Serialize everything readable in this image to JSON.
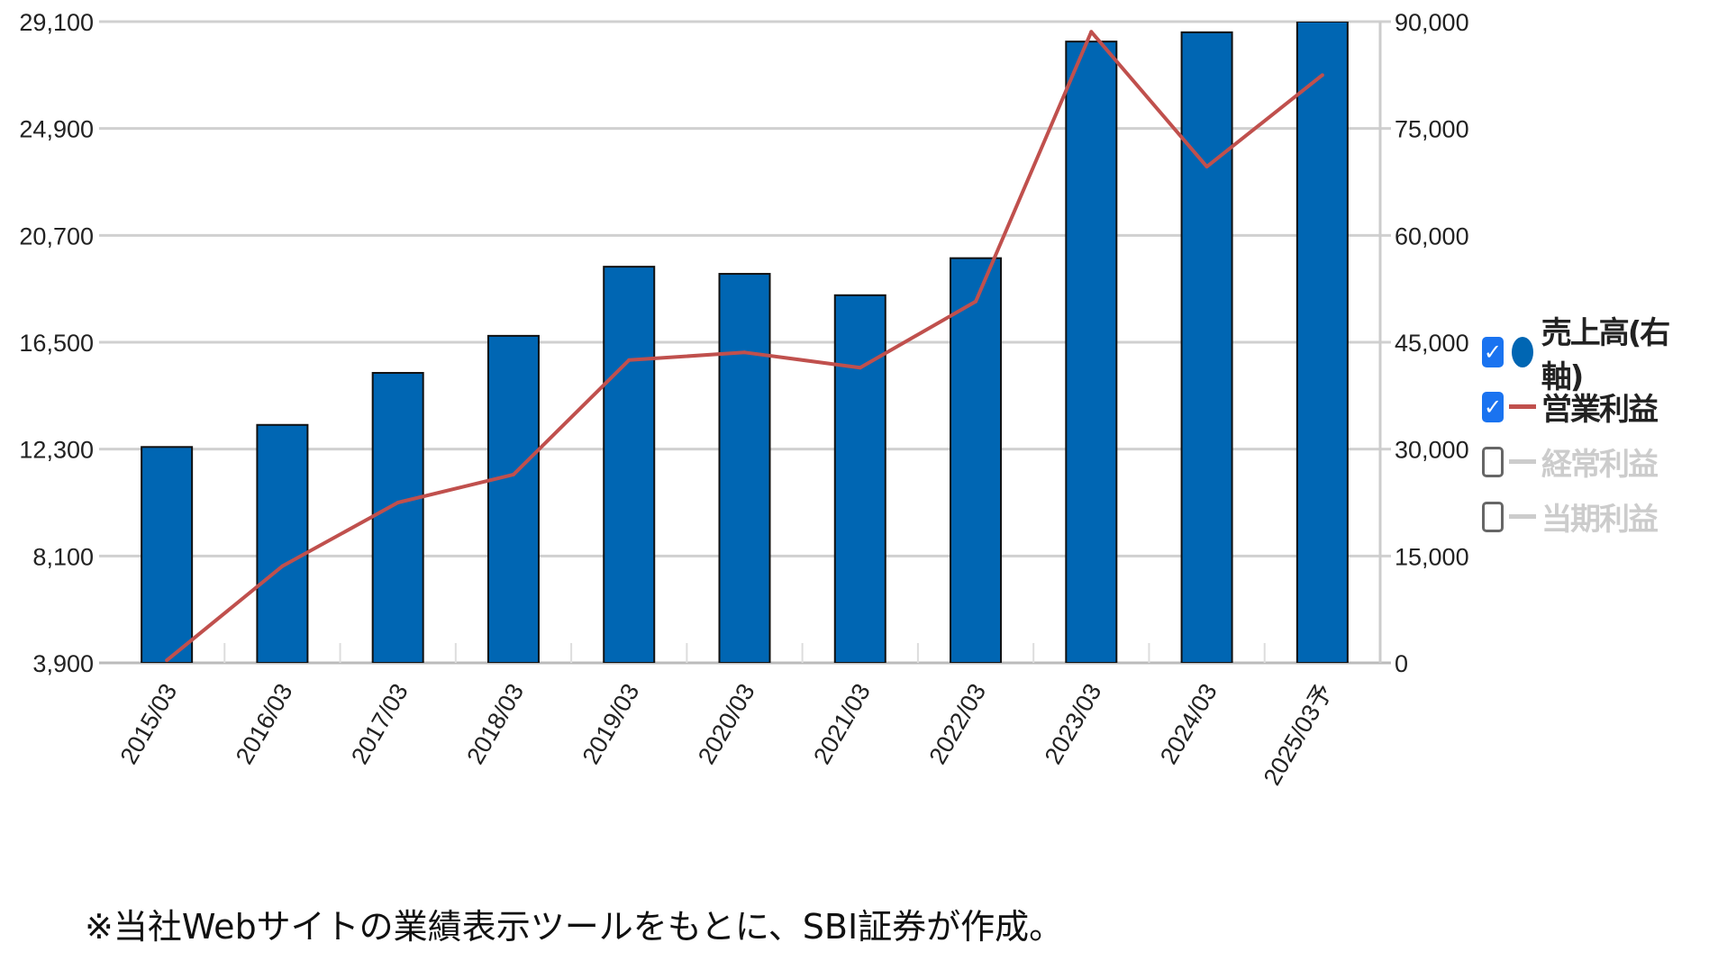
{
  "chart_data": {
    "type": "bar+line",
    "categories": [
      "2015/03",
      "2016/03",
      "2017/03",
      "2018/03",
      "2019/03",
      "2020/03",
      "2021/03",
      "2022/03",
      "2023/03",
      "2024/03",
      "2025/03予"
    ],
    "series": [
      {
        "name": "売上高(右軸)",
        "type": "bar",
        "axis": "right",
        "color": "#0066b3",
        "values": [
          30300,
          33400,
          40700,
          45900,
          55600,
          54600,
          51600,
          56800,
          87200,
          88500,
          90000
        ]
      },
      {
        "name": "営業利益",
        "type": "line",
        "axis": "left",
        "color": "#c0504d",
        "values": [
          4000,
          7700,
          10200,
          11300,
          15800,
          16100,
          15500,
          18100,
          28700,
          23400,
          27000
        ]
      }
    ],
    "left_axis": {
      "ylim": [
        3900,
        29100
      ],
      "ticks": [
        "3,900",
        "8,100",
        "12,300",
        "16,500",
        "20,700",
        "24,900",
        "29,100"
      ]
    },
    "right_axis": {
      "ylim": [
        0,
        90000
      ],
      "ticks": [
        "0",
        "15,000",
        "30,000",
        "45,000",
        "60,000",
        "75,000",
        "90,000"
      ]
    },
    "grid": true,
    "legend_placement": "right",
    "legend": [
      {
        "label": "売上高(右軸)",
        "checked": true,
        "marker": "circle",
        "color": "#0066b3"
      },
      {
        "label": "営業利益",
        "checked": true,
        "marker": "line",
        "color": "#c0504d"
      },
      {
        "label": "経常利益",
        "checked": false,
        "marker": "line",
        "color": "#cccccc"
      },
      {
        "label": "当期利益",
        "checked": false,
        "marker": "line",
        "color": "#cccccc"
      }
    ]
  },
  "footnote": "※当社Webサイトの業績表示ツールをもとに、SBI証券が作成。"
}
